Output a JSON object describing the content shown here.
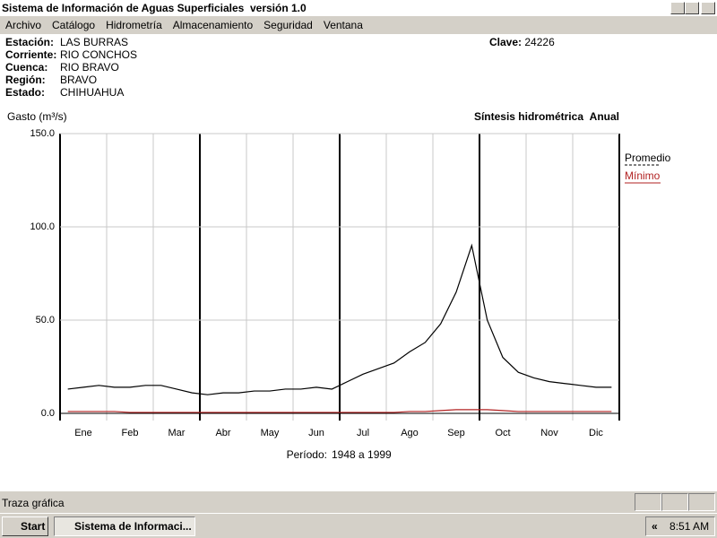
{
  "window": {
    "title": "Sistema de Información de Aguas Superficiales  versión 1.0",
    "menu": [
      "Archivo",
      "Catálogo",
      "Hidrometría",
      "Almacenamiento",
      "Seguridad",
      "Ventana"
    ]
  },
  "station": {
    "fields": [
      {
        "label": "Estación:",
        "value": "LAS BURRAS"
      },
      {
        "label": "Corriente:",
        "value": "RIO CONCHOS"
      },
      {
        "label": "Cuenca:",
        "value": "RIO BRAVO"
      },
      {
        "label": "Región:",
        "value": "BRAVO"
      },
      {
        "label": "Estado:",
        "value": "CHIHUAHUA"
      }
    ],
    "clave_label": "Clave:",
    "clave": "24226"
  },
  "chart_data": {
    "type": "line",
    "title": "Síntesis hidrométrica",
    "subtitle": "Anual",
    "y_label": "Gasto (m³/s)",
    "period_label": "Período:",
    "period": "1948 a 1999",
    "categories": [
      null,
      "Ene",
      null,
      null,
      "Feb",
      null,
      null,
      "Mar",
      null,
      null,
      "Abr",
      null,
      null,
      "May",
      null,
      null,
      "Jun",
      null,
      null,
      "Jul",
      null,
      null,
      "Ago",
      null,
      null,
      "Sep",
      null,
      null,
      "Oct",
      null,
      null,
      "Nov",
      null,
      null,
      "Dic",
      null
    ],
    "series": [
      {
        "name": "Promedio",
        "color": "#000000",
        "values": [
          13,
          14,
          15,
          14,
          14,
          15,
          15,
          13,
          11,
          10,
          11,
          11,
          12,
          12,
          13,
          13,
          14,
          13,
          17,
          21,
          24,
          27,
          33,
          38,
          48,
          65,
          90,
          50,
          30,
          22,
          19,
          17,
          16,
          15,
          14,
          14
        ]
      },
      {
        "name": "Mínimo",
        "color": "#b22222",
        "values": [
          1,
          1,
          1,
          1,
          0.5,
          0.5,
          0.5,
          0.5,
          0.5,
          0.5,
          0.5,
          0.5,
          0.5,
          0.5,
          0.5,
          0.5,
          0.5,
          0.5,
          0.5,
          0.5,
          0.5,
          0.5,
          1,
          1,
          1.5,
          2,
          2,
          2,
          1.5,
          1,
          1,
          1,
          1,
          1,
          1,
          1
        ]
      }
    ],
    "ylim": [
      0,
      150
    ],
    "yticks": [
      {
        "value": 0,
        "label": "0.0"
      },
      {
        "value": 50,
        "label": "50.0"
      },
      {
        "value": 100,
        "label": "100.0"
      },
      {
        "value": 150,
        "label": "150.0"
      }
    ],
    "grid": true
  },
  "status": "Traza gráfica",
  "taskbar": {
    "start": "Start",
    "task": "Sistema de Informaci...",
    "tray_arrow": "«",
    "clock": "8:51 AM"
  }
}
